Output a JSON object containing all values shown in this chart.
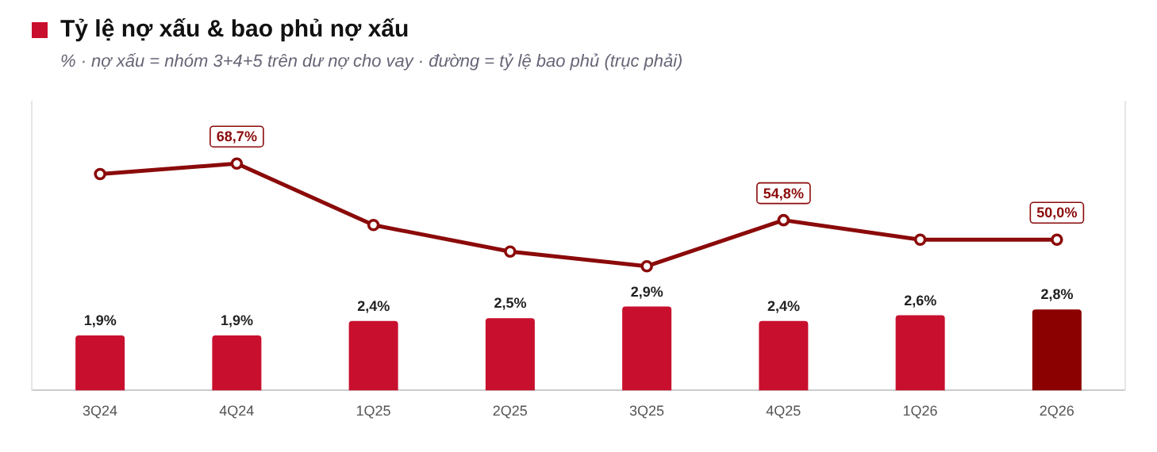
{
  "chart_data": {
    "type": "bar",
    "title": "Tỷ lệ nợ xấu & bao phủ nợ xấu",
    "subtitle": "% · nợ xấu = nhóm 3+4+5 trên dư nợ cho vay · đường = tỷ lệ bao phủ (trục phải)",
    "categories": [
      "3Q24",
      "4Q24",
      "1Q25",
      "2Q25",
      "3Q25",
      "4Q25",
      "1Q26",
      "2Q26"
    ],
    "series": [
      {
        "colors": [
          "#c8102e",
          "#c8102e",
          "#c8102e",
          "#c8102e",
          "#c8102e",
          "#c8102e",
          "#c8102e",
          "#8b0000"
        ],
        "values": [
          1.9,
          1.9,
          2.4,
          2.5,
          2.9,
          2.4,
          2.6,
          2.8
        ],
        "value_labels": [
          "1,9%",
          "1,9%",
          "2,4%",
          "2,5%",
          "2,9%",
          "2,4%",
          "2,6%",
          "2,8%"
        ]
      },
      {
        "type": "line",
        "axis": "y2",
        "color": "#8b0a0a",
        "values": [
          66.1,
          68.7,
          53.6,
          47.1,
          43.5,
          54.8,
          50.0,
          50.0
        ],
        "value_labels": [
          null,
          "68,7%",
          null,
          null,
          null,
          "54,8%",
          null,
          "50,0%"
        ]
      }
    ],
    "ylim": [
      0,
      10
    ],
    "y2lim": [
      13,
      84
    ],
    "marker": "circle",
    "line_style": "solid",
    "grid": false,
    "legend": false
  }
}
